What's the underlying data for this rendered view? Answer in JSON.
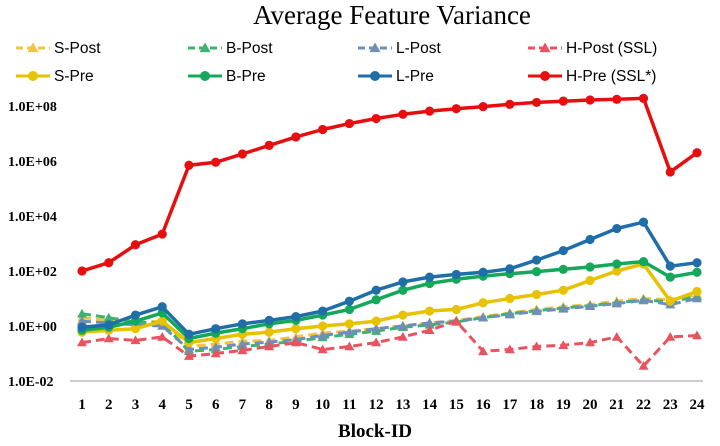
{
  "chart_data": {
    "type": "line",
    "title": "Average Feature Variance",
    "xlabel": "Block-ID",
    "ylabel": "",
    "yscale": "log",
    "ylim": [
      0.01,
      100000000
    ],
    "ytick_labels": [
      "1.0E-02",
      "1.0E+00",
      "1.0E+02",
      "1.0E+04",
      "1.0E+06",
      "1.0E+08"
    ],
    "x": [
      1,
      2,
      3,
      4,
      5,
      6,
      7,
      8,
      9,
      10,
      11,
      12,
      13,
      14,
      15,
      16,
      17,
      18,
      19,
      20,
      21,
      22,
      23,
      24
    ],
    "grid": false,
    "legend_position": "top",
    "series": [
      {
        "name": "S-Post",
        "color": "#f5c242",
        "marker": "triangle",
        "dash": true,
        "values": [
          2.0,
          1.6,
          1.2,
          1.6,
          0.18,
          0.22,
          0.28,
          0.3,
          0.4,
          0.55,
          0.65,
          0.8,
          1.0,
          1.3,
          1.6,
          2.2,
          3.0,
          4.0,
          5.0,
          6.0,
          8.0,
          10.0,
          9.0,
          14.0
        ]
      },
      {
        "name": "B-Post",
        "color": "#3cb371",
        "marker": "triangle",
        "dash": true,
        "values": [
          2.8,
          2.0,
          1.4,
          1.3,
          0.12,
          0.14,
          0.18,
          0.22,
          0.28,
          0.38,
          0.5,
          0.65,
          0.9,
          1.1,
          1.4,
          2.0,
          2.8,
          3.6,
          4.5,
          5.5,
          7.0,
          9.0,
          7.5,
          12.0
        ]
      },
      {
        "name": "L-Post",
        "color": "#6f8fb8",
        "marker": "triangle",
        "dash": true,
        "values": [
          1.5,
          1.3,
          1.1,
          1.0,
          0.14,
          0.17,
          0.22,
          0.26,
          0.32,
          0.45,
          0.6,
          0.8,
          1.0,
          1.3,
          1.5,
          2.0,
          2.6,
          3.4,
          4.2,
          5.2,
          6.5,
          8.5,
          6.0,
          10.0
        ]
      },
      {
        "name": "H-Post (SSL)",
        "color": "#e8535f",
        "marker": "triangle",
        "dash": true,
        "values": [
          0.25,
          0.35,
          0.3,
          0.4,
          0.08,
          0.1,
          0.13,
          0.18,
          0.25,
          0.14,
          0.18,
          0.25,
          0.4,
          0.7,
          1.5,
          0.12,
          0.14,
          0.18,
          0.2,
          0.25,
          0.4,
          0.035,
          0.4,
          0.45
        ]
      },
      {
        "name": "S-Pre",
        "color": "#e6c200",
        "marker": "circle",
        "dash": false,
        "values": [
          0.6,
          0.7,
          0.8,
          1.5,
          0.25,
          0.35,
          0.5,
          0.6,
          0.8,
          1.0,
          1.2,
          1.5,
          2.5,
          3.5,
          4.0,
          7.0,
          10.0,
          14.0,
          20.0,
          45.0,
          100.0,
          180.0,
          8.0,
          18.0
        ]
      },
      {
        "name": "B-Pre",
        "color": "#13a85a",
        "marker": "circle",
        "dash": false,
        "values": [
          0.7,
          0.9,
          1.5,
          3.0,
          0.35,
          0.55,
          0.8,
          1.2,
          1.6,
          2.5,
          4.0,
          9.0,
          20.0,
          35.0,
          50.0,
          65.0,
          80.0,
          95.0,
          115.0,
          140.0,
          180.0,
          220.0,
          60.0,
          90.0
        ]
      },
      {
        "name": "L-Pre",
        "color": "#1f6ea8",
        "marker": "circle",
        "dash": false,
        "values": [
          0.9,
          1.1,
          2.5,
          5.0,
          0.5,
          0.8,
          1.2,
          1.6,
          2.2,
          3.5,
          8.0,
          20.0,
          40.0,
          60.0,
          75.0,
          90.0,
          120.0,
          250.0,
          550.0,
          1400.0,
          3500.0,
          6000.0,
          150.0,
          200.0
        ]
      },
      {
        "name": "H-Pre (SSL*)",
        "color": "#e60e0e",
        "marker": "circle",
        "dash": false,
        "values": [
          100.0,
          200.0,
          900.0,
          2200.0,
          700000.0,
          900000.0,
          1800000.0,
          3700000.0,
          7500000.0,
          14000000.0,
          23000000.0,
          35000000.0,
          50000000.0,
          65000000.0,
          80000000.0,
          95000000.0,
          115000000.0,
          135000000.0,
          150000000.0,
          165000000.0,
          175000000.0,
          190000000.0,
          400000.0,
          2000000.0
        ]
      }
    ]
  }
}
